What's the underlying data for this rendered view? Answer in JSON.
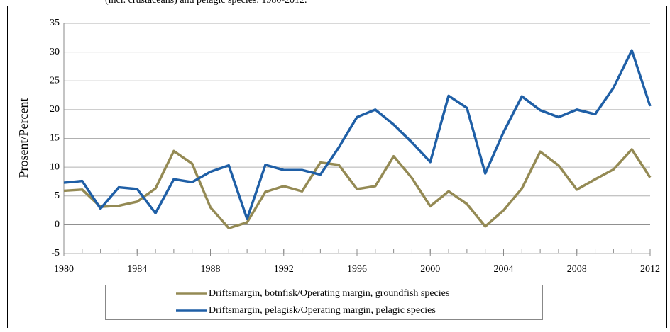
{
  "chart_data": {
    "type": "line",
    "title": "(incl. crustaceans) and pelagic species. 1980-2012.",
    "y_label": "Prosent/Percent",
    "x": [
      1980,
      1981,
      1982,
      1983,
      1984,
      1985,
      1986,
      1987,
      1988,
      1989,
      1990,
      1991,
      1992,
      1993,
      1994,
      1995,
      1996,
      1997,
      1998,
      1999,
      2000,
      2001,
      2002,
      2003,
      2004,
      2005,
      2006,
      2007,
      2008,
      2009,
      2010,
      2011,
      2012
    ],
    "series": [
      {
        "name": "Driftsmargin, botnfisk/Operating margin, groundfish species",
        "color": "#948a54",
        "values": [
          5.9,
          6.1,
          3.1,
          3.3,
          4.0,
          6.3,
          12.8,
          10.6,
          3.0,
          -0.6,
          0.4,
          5.7,
          6.7,
          5.8,
          10.8,
          10.4,
          6.2,
          6.7,
          11.9,
          8.1,
          3.2,
          5.8,
          3.6,
          -0.3,
          2.5,
          6.3,
          12.7,
          10.3,
          6.1,
          7.9,
          9.6,
          13.1,
          8.2
        ]
      },
      {
        "name": "Driftsmargin, pelagisk/Operating margin, pelagic species",
        "color": "#1f5fa6",
        "values": [
          7.3,
          7.6,
          2.8,
          6.5,
          6.2,
          2.0,
          7.9,
          7.4,
          9.2,
          10.3,
          1.0,
          10.4,
          9.5,
          9.5,
          8.7,
          13.4,
          18.7,
          20.0,
          17.4,
          14.3,
          10.9,
          22.4,
          20.3,
          8.9,
          16.1,
          22.3,
          19.9,
          18.7,
          20.0,
          19.2,
          23.8,
          30.3,
          20.6
        ]
      }
    ],
    "xlim": [
      1980,
      2012
    ],
    "xticks": [
      1980,
      1984,
      1988,
      1992,
      1996,
      2000,
      2004,
      2008,
      2012
    ],
    "ylim": [
      -5,
      35
    ],
    "yticks": [
      -5,
      0,
      5,
      10,
      15,
      20,
      25,
      30,
      35
    ],
    "negative_tick_color": "#c00000",
    "grid": true,
    "legend": "bottom"
  }
}
